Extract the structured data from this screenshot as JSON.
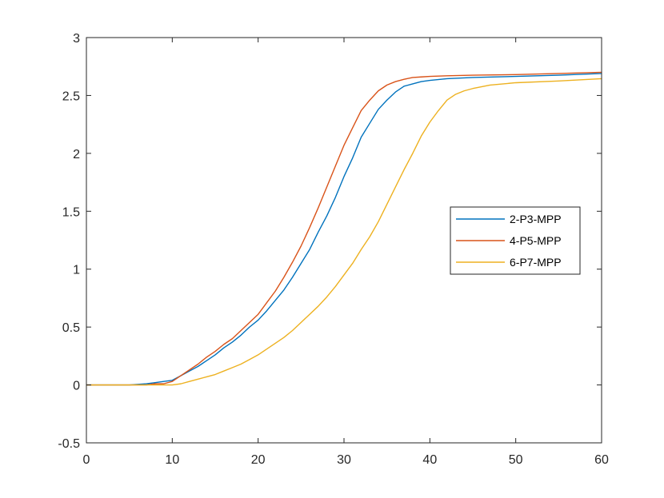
{
  "chart_data": {
    "type": "line",
    "title": "",
    "xlabel": "",
    "ylabel": "",
    "xlim": [
      0,
      60
    ],
    "ylim": [
      -0.5,
      3
    ],
    "xticks": [
      "0",
      "10",
      "20",
      "30",
      "40",
      "50",
      "60"
    ],
    "yticks": [
      "-0.5",
      "0",
      "0.5",
      "1",
      "1.5",
      "2",
      "2.5",
      "3"
    ],
    "grid": false,
    "legend_position": "right",
    "series": [
      {
        "name": "2-P3-MPP",
        "color": "#0072BD",
        "x": [
          0,
          5,
          7,
          8,
          9,
          10,
          11,
          12,
          13,
          14,
          15,
          16,
          17,
          18,
          19,
          20,
          21,
          22,
          23,
          24,
          25,
          26,
          27,
          28,
          29,
          30,
          31,
          32,
          33,
          34,
          35,
          36,
          37,
          38,
          39,
          40,
          42,
          45,
          50,
          55,
          60
        ],
        "y": [
          0,
          0,
          0.01,
          0.02,
          0.03,
          0.04,
          0.08,
          0.12,
          0.16,
          0.21,
          0.26,
          0.32,
          0.37,
          0.43,
          0.5,
          0.56,
          0.64,
          0.73,
          0.82,
          0.93,
          1.05,
          1.17,
          1.32,
          1.46,
          1.62,
          1.8,
          1.96,
          2.14,
          2.26,
          2.38,
          2.46,
          2.53,
          2.58,
          2.6,
          2.62,
          2.63,
          2.645,
          2.655,
          2.665,
          2.675,
          2.69
        ]
      },
      {
        "name": "4-P5-MPP",
        "color": "#D95319",
        "x": [
          0,
          5,
          7,
          8,
          9,
          10,
          11,
          12,
          13,
          14,
          15,
          16,
          17,
          18,
          19,
          20,
          21,
          22,
          23,
          24,
          25,
          26,
          27,
          28,
          29,
          30,
          31,
          32,
          33,
          34,
          35,
          36,
          37,
          38,
          39,
          40,
          42,
          45,
          50,
          55,
          60
        ],
        "y": [
          0,
          0,
          0.0,
          0.01,
          0.01,
          0.03,
          0.08,
          0.13,
          0.18,
          0.24,
          0.29,
          0.35,
          0.4,
          0.47,
          0.54,
          0.61,
          0.71,
          0.81,
          0.93,
          1.06,
          1.2,
          1.36,
          1.53,
          1.71,
          1.89,
          2.07,
          2.22,
          2.37,
          2.46,
          2.54,
          2.59,
          2.62,
          2.64,
          2.655,
          2.66,
          2.665,
          2.67,
          2.675,
          2.68,
          2.69,
          2.7
        ]
      },
      {
        "name": "6-P7-MPP",
        "color": "#EDB120",
        "x": [
          0,
          5,
          8,
          9,
          10,
          11,
          12,
          13,
          14,
          15,
          16,
          17,
          18,
          19,
          20,
          21,
          22,
          23,
          24,
          25,
          26,
          27,
          28,
          29,
          30,
          31,
          32,
          33,
          34,
          35,
          36,
          37,
          38,
          39,
          40,
          41,
          42,
          43,
          44,
          45,
          47,
          50,
          55,
          60
        ],
        "y": [
          0,
          0,
          0,
          0,
          0,
          0.01,
          0.03,
          0.05,
          0.07,
          0.09,
          0.12,
          0.15,
          0.18,
          0.22,
          0.26,
          0.31,
          0.36,
          0.41,
          0.47,
          0.54,
          0.61,
          0.68,
          0.76,
          0.85,
          0.95,
          1.05,
          1.17,
          1.28,
          1.41,
          1.56,
          1.71,
          1.86,
          2.0,
          2.15,
          2.27,
          2.37,
          2.46,
          2.51,
          2.54,
          2.56,
          2.59,
          2.61,
          2.625,
          2.645
        ]
      }
    ]
  }
}
